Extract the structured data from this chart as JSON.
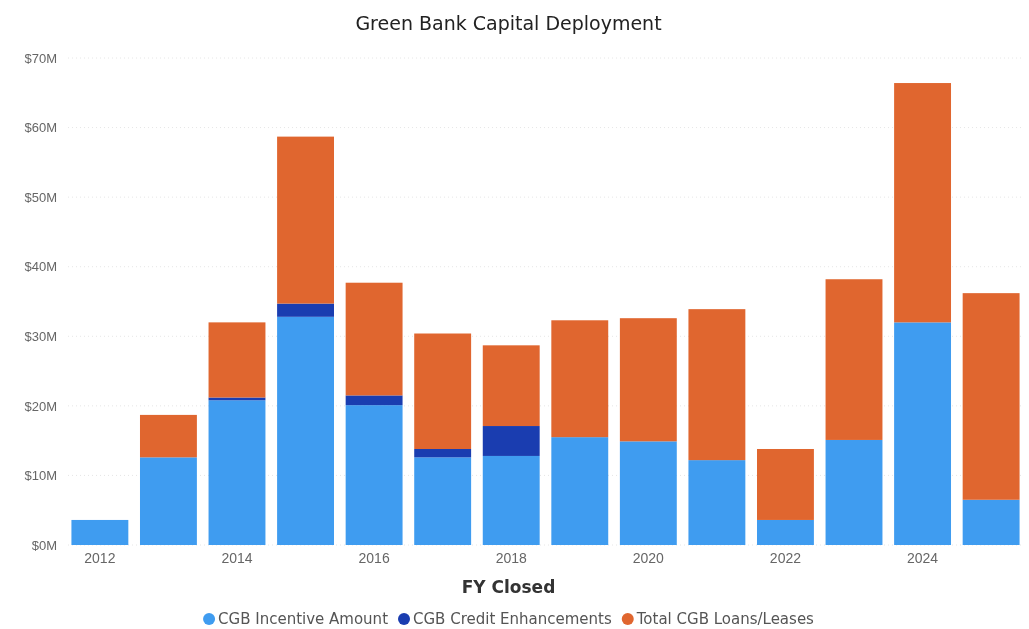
{
  "chart_data": {
    "type": "bar",
    "title": "Green Bank Capital Deployment",
    "xlabel": "FY Closed",
    "stacked": true,
    "grid": "y",
    "legend": "bottom",
    "categories": [
      "2012",
      null,
      "2014",
      null,
      "2016",
      null,
      "2018",
      null,
      "2020",
      null,
      "2022",
      null,
      "2024",
      null
    ],
    "ylim": [
      0,
      70
    ],
    "yticks": [
      {
        "value": 0,
        "label": "$0M"
      },
      {
        "value": 10,
        "label": "$10M"
      },
      {
        "value": 20,
        "label": "$20M"
      },
      {
        "value": 30,
        "label": "$30M"
      },
      {
        "value": 40,
        "label": "$40M"
      },
      {
        "value": 50,
        "label": "$50M"
      },
      {
        "value": 60,
        "label": "$60M"
      },
      {
        "value": 70,
        "label": "$70M"
      }
    ],
    "series": [
      {
        "name": "CGB Incentive Amount",
        "color": "#3f9cf0",
        "values": [
          3.6,
          12.6,
          20.8,
          32.8,
          20.1,
          12.6,
          12.8,
          15.5,
          14.9,
          12.2,
          3.6,
          15.1,
          32.0,
          6.5
        ]
      },
      {
        "name": "CGB Credit Enhancements",
        "color": "#1a3db0",
        "values": [
          null,
          null,
          0.4,
          1.9,
          1.4,
          1.2,
          4.3,
          null,
          null,
          null,
          null,
          null,
          null,
          null
        ]
      },
      {
        "name": "Total CGB Loans/Leases",
        "color": "#e0662f",
        "values": [
          null,
          6.1,
          10.8,
          24.0,
          16.2,
          16.6,
          11.6,
          16.8,
          17.7,
          21.7,
          10.2,
          23.1,
          34.4,
          29.7
        ]
      }
    ]
  }
}
